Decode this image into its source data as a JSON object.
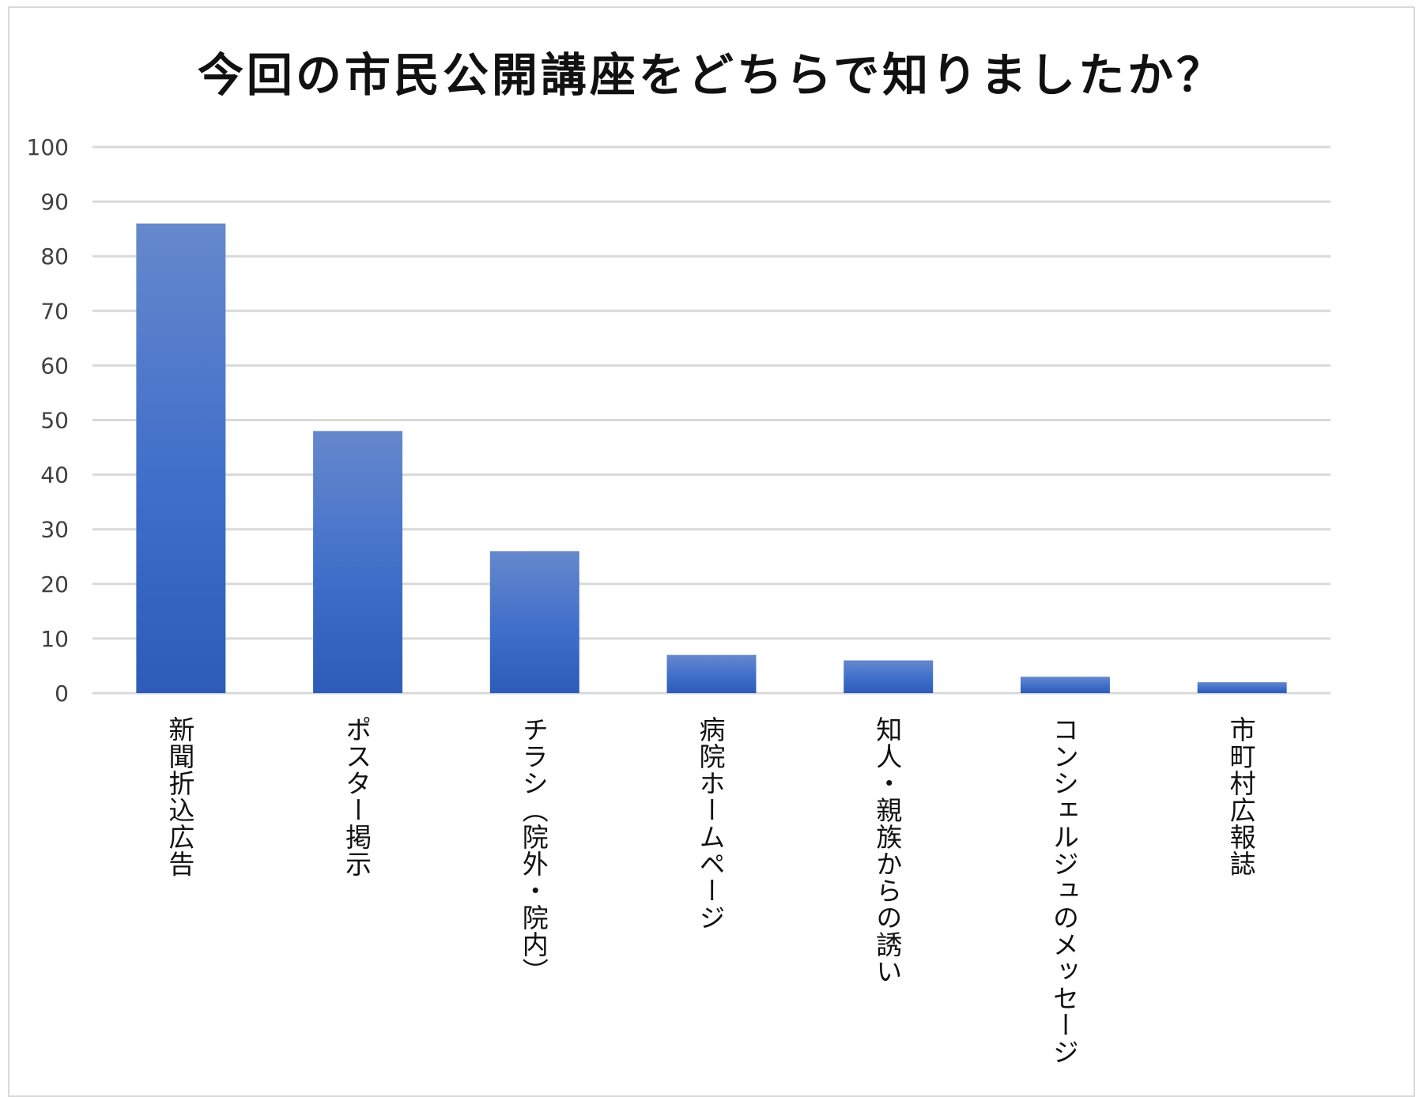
{
  "chart_data": {
    "type": "bar",
    "title": "今回の市民公開講座をどちらで知りましたか？",
    "xlabel": "",
    "ylabel": "",
    "categories": [
      "新聞折込広告",
      "ポスター掲示",
      "チラシ（院外・院内）",
      "病院ホームページ",
      "知人・親族からの誘い",
      "コンシェルジュのメッセージ",
      "市町村広報誌"
    ],
    "values": [
      86,
      48,
      26,
      7,
      6,
      3,
      2
    ],
    "ylim": [
      0,
      100
    ],
    "yticks": [
      "0",
      "10",
      "20",
      "30",
      "40",
      "50",
      "60",
      "70",
      "80",
      "90",
      "100"
    ],
    "grid": true,
    "legend": "none",
    "colors": {
      "bar_top": "#6688cc",
      "bar_mid": "#3f6fca",
      "bar_bottom": "#2d5bb8",
      "grid": "#d9d9d9",
      "axis_text": "#404040"
    }
  }
}
